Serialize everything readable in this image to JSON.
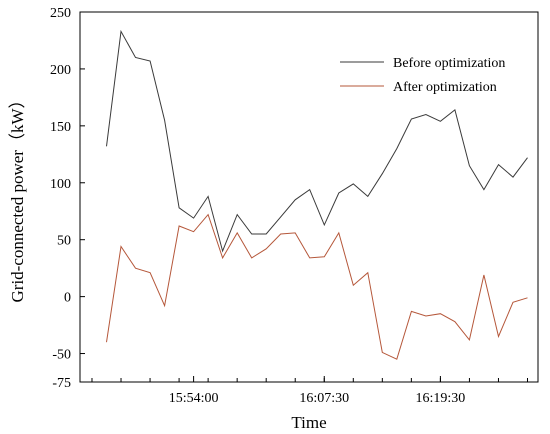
{
  "chart_data": {
    "type": "line",
    "xlabel": "Time",
    "ylabel": "Grid-connected power（kW）",
    "ylim": [
      -75,
      250
    ],
    "yticks": [
      -75,
      -50,
      0,
      50,
      100,
      150,
      200,
      250
    ],
    "xticks": [
      {
        "index": 6,
        "label": "15:54:00"
      },
      {
        "index": 15,
        "label": "16:07:30"
      },
      {
        "index": 23,
        "label": "16:19:30"
      }
    ],
    "grid": false,
    "legend_position": "top-right",
    "series": [
      {
        "name": "Before optimization",
        "color": "#3a3a3a",
        "values": [
          132,
          233,
          210,
          207,
          155,
          78,
          69,
          88,
          40,
          72,
          55,
          55,
          70,
          85,
          94,
          63,
          91,
          99,
          88,
          108,
          130,
          156,
          160,
          154,
          164,
          115,
          94,
          116,
          105,
          122
        ]
      },
      {
        "name": "After optimization",
        "color": "#b5573a",
        "values": [
          -40,
          44,
          25,
          21,
          -8,
          62,
          57,
          72,
          34,
          56,
          34,
          42,
          55,
          56,
          34,
          35,
          56,
          10,
          21,
          -49,
          -55,
          -13,
          -17,
          -15,
          -22,
          -38,
          19,
          -35,
          -5,
          -1
        ]
      }
    ]
  }
}
